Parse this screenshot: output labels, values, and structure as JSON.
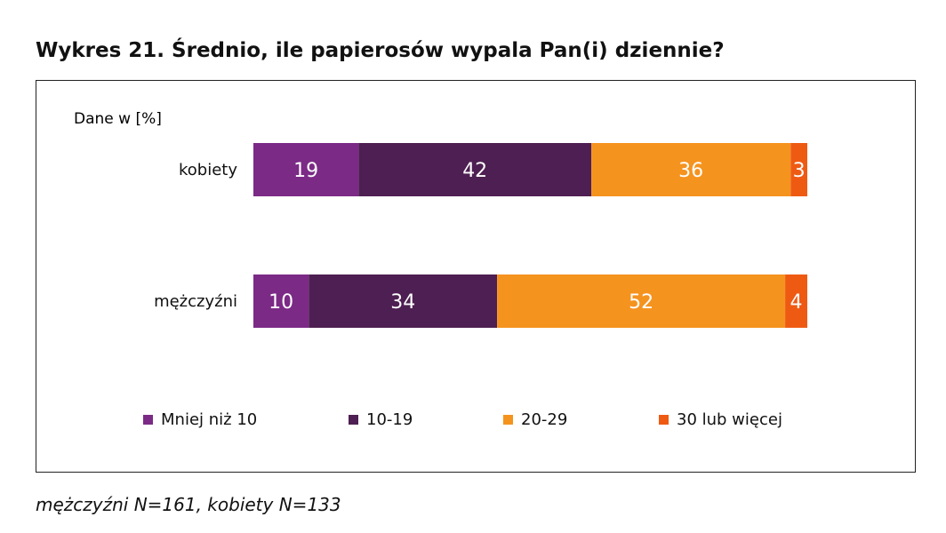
{
  "title": "Wykres 21. Średnio, ile papierosów wypala Pan(i) dziennie?",
  "footnote": "mężczyźni N=161, kobiety N=133",
  "chart_data": {
    "type": "bar",
    "orientation": "horizontal",
    "stacked": true,
    "units_label": "Dane w [%]",
    "categories": [
      "kobiety",
      "mężczyźni"
    ],
    "series": [
      {
        "name": "Mniej niż 10",
        "values": [
          19,
          10
        ],
        "color": "#7b2a86"
      },
      {
        "name": "10-19",
        "values": [
          42,
          34
        ],
        "color": "#4e1f52"
      },
      {
        "name": "20-29",
        "values": [
          36,
          52
        ],
        "color": "#f5931f"
      },
      {
        "name": "30 lub więcej",
        "values": [
          3,
          4
        ],
        "color": "#ef5a13"
      }
    ],
    "xlim": [
      0,
      100
    ],
    "grid": false,
    "legend": "bottom",
    "data_label_color": "#ffffff"
  }
}
